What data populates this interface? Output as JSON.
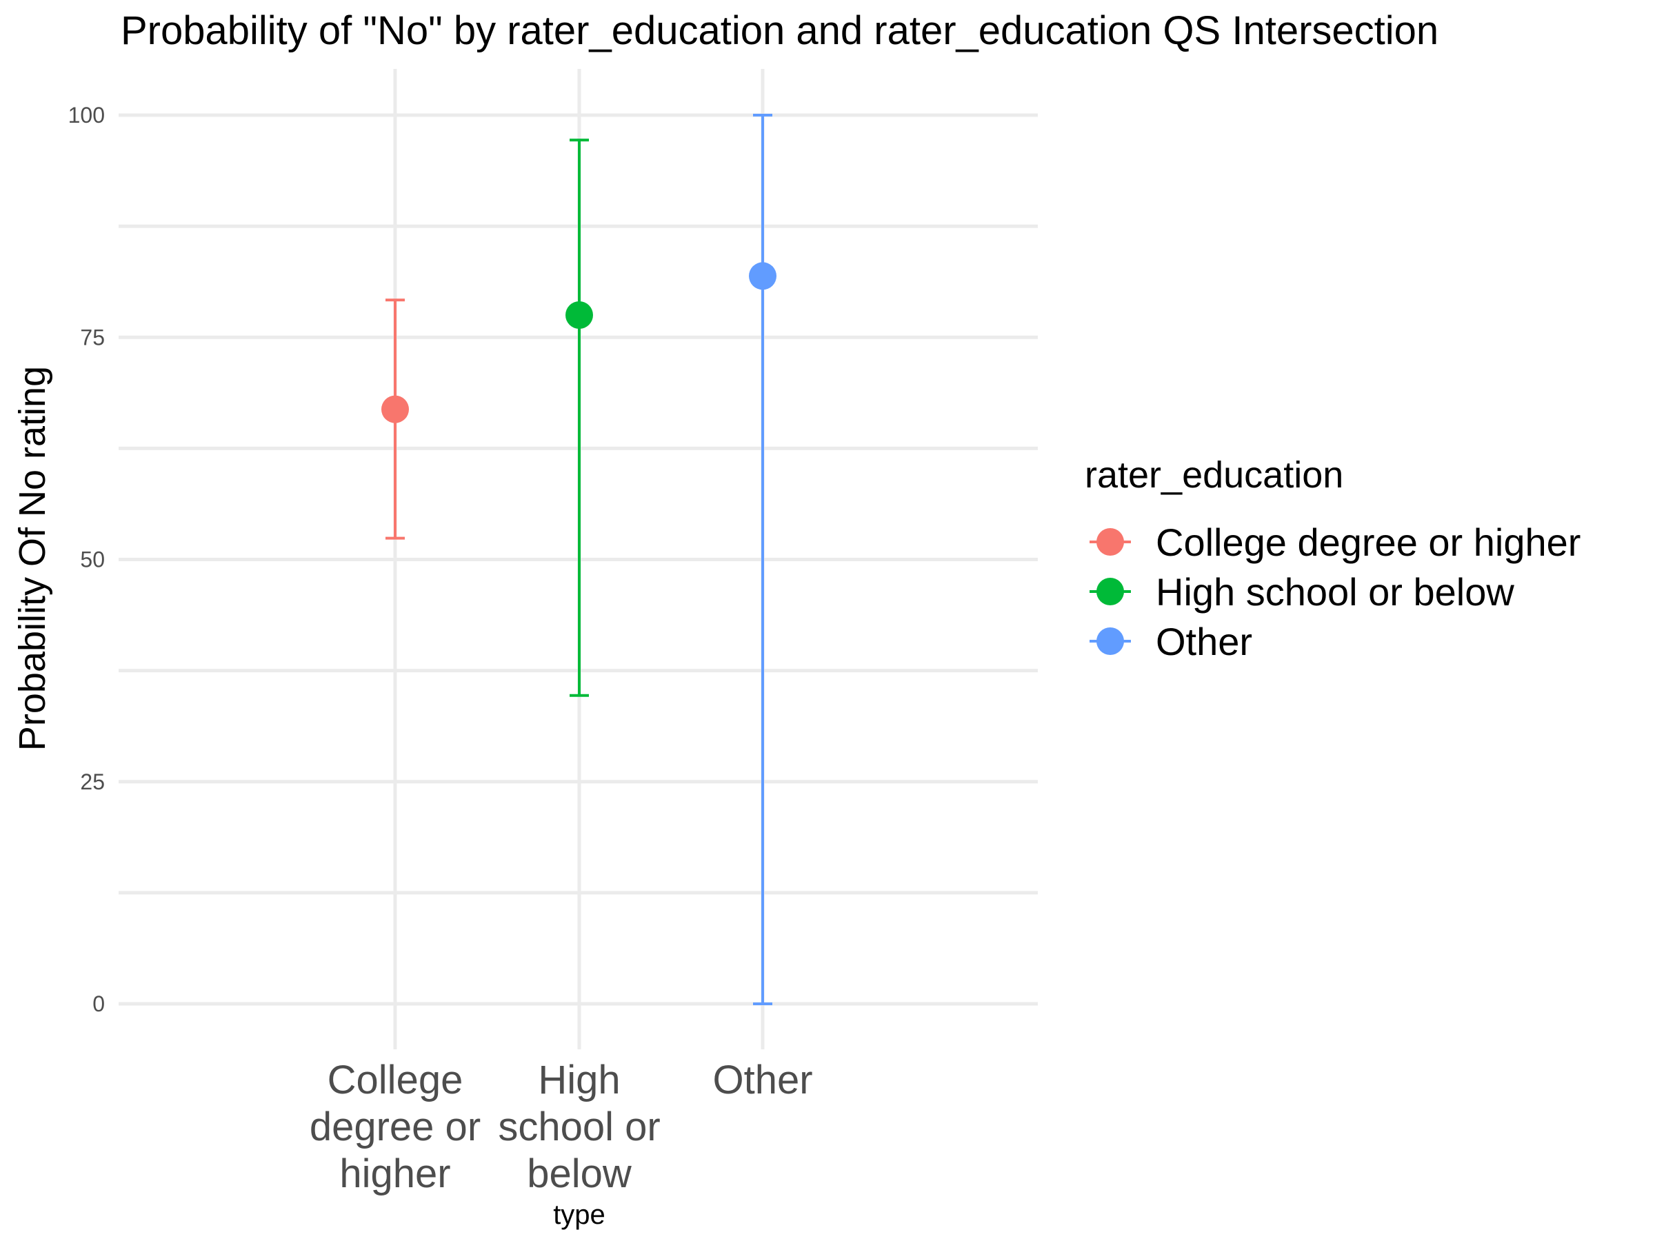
{
  "chart_data": {
    "type": "scatter",
    "title": "Probability of \"No\" by rater_education and  rater_education  QS Intersection",
    "xlabel": "type",
    "ylabel": "Probability Of No rating",
    "ylim": [
      -5,
      105
    ],
    "yticks": [
      0,
      25,
      50,
      75,
      100
    ],
    "grid": true,
    "legend_position": "right",
    "legend_title": "rater_education",
    "categories": [
      [
        "College",
        "degree or",
        "higher"
      ],
      [
        "High",
        "school or",
        "below"
      ],
      [
        "Other"
      ]
    ],
    "series": [
      {
        "name": "College degree or higher",
        "color": "#F8766D",
        "value": 66.9,
        "lower": 52.4,
        "upper": 79.2
      },
      {
        "name": "High school or below",
        "color": "#00BA38",
        "value": 77.5,
        "lower": 34.7,
        "upper": 97.2
      },
      {
        "name": "Other",
        "color": "#619CFF",
        "value": 81.9,
        "lower": 0,
        "upper": 100
      }
    ]
  }
}
